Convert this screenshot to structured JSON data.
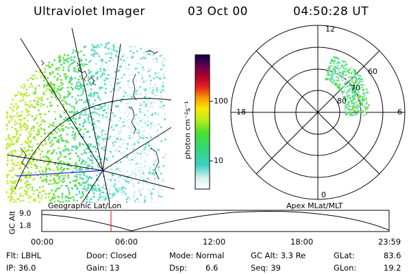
{
  "header": {
    "title": "Ultraviolet Imager",
    "date": "03 Oct 00",
    "time": "04:50:28 UT"
  },
  "colorbar": {
    "unit_label": "photon cm⁻²s⁻¹",
    "ticks": [
      "100",
      "10"
    ]
  },
  "polar_plot": {
    "mlt_labels": [
      "12",
      "18",
      "6",
      "0"
    ],
    "lat_labels": [
      "60",
      "70",
      "80"
    ]
  },
  "orbit": {
    "left_label": "Geographic Lat/Lon",
    "right_label": "Apex MLat/MLT",
    "y_axis_label": "GC Alt",
    "y_ticks": [
      "9.0",
      "1.8"
    ],
    "x_ticks": [
      "00:00",
      "06:00",
      "12:00",
      "18:00",
      "23:59"
    ],
    "marker_color": "#e00000"
  },
  "footer": {
    "flt": "Flt: LBHL",
    "ip": "IP: 36.0",
    "door": "Door: Closed",
    "gain": "Gain: 13",
    "mode": "Mode: Normal",
    "dsp_label": "Dsp:",
    "dsp_value": "6.6",
    "gcalt": "GC Alt: 3.3 Re",
    "seq": "Seq: 39",
    "glat_label": "GLat:",
    "glat_value": "83.6",
    "glon_label": "GLon:",
    "glon_value": "19.2"
  }
}
